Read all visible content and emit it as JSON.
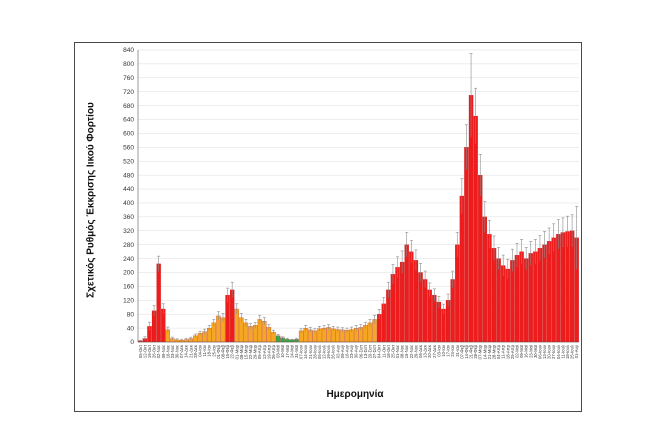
{
  "chart_data": {
    "type": "bar",
    "title": "",
    "xlabel": "Ημερομηνία",
    "ylabel": "Σχετικός Ρυθμός Έκκρισης Ιικού Φορτίου",
    "ylim": [
      0,
      840
    ],
    "yticks": [
      0,
      40,
      80,
      120,
      160,
      200,
      240,
      280,
      320,
      360,
      400,
      440,
      480,
      520,
      560,
      600,
      640,
      680,
      720,
      760,
      800,
      840
    ],
    "grid": true,
    "error_bars": true,
    "colors": {
      "high": "#ee1c1c",
      "medium": "#f5a623",
      "low": "#2eaa4a",
      "errorbar": "#8a8a8a"
    },
    "categories": [
      "05-Οκτ",
      "12-Οκτ",
      "19-Οκτ",
      "26-Οκτ",
      "02-Νοε",
      "09-Νοε",
      "16-Νοε",
      "23-Νοε",
      "30-Νοε",
      "07-Δεκ",
      "14-Δεκ",
      "21-Δεκ",
      "28-Δεκ",
      "04-Ιαν",
      "11-Ιαν",
      "18-Ιαν",
      "25-Ιαν",
      "01-Φεβ",
      "08-Φεβ",
      "15-Φεβ",
      "22-Φεβ",
      "01-Μαρ",
      "08-Μαρ",
      "15-Μαρ",
      "22-Μαρ",
      "29-Μαρ",
      "05-Απρ",
      "12-Απρ",
      "19-Απρ",
      "26-Απρ",
      "03-Μαϊ",
      "10-Μαϊ",
      "17-Μαϊ",
      "24-Μαϊ",
      "31-Μαϊ",
      "07-Ιουν",
      "14-Ιουν",
      "21-Ιουν",
      "28-Ιουν",
      "05-Ιουλ",
      "12-Ιουλ",
      "19-Ιουλ",
      "26-Ιουλ",
      "02-Αυγ",
      "09-Αυγ",
      "16-Αυγ",
      "23-Αυγ",
      "30-Αυγ",
      "06-Σεπ",
      "13-Σεπ",
      "20-Σεπ",
      "27-Σεπ",
      "04-Οκτ",
      "11-Οκτ",
      "18-Οκτ",
      "25-Οκτ",
      "01-Νοε",
      "08-Νοε",
      "15-Νοε",
      "22-Νοε",
      "29-Νοε",
      "06-Δεκ",
      "13-Δεκ",
      "20-Δεκ",
      "27-Δεκ",
      "03-Ιαν",
      "10-Ιαν",
      "17-Ιαν",
      "24-Ιαν",
      "31-Ιαν",
      "07-Φεβ",
      "14-Φεβ",
      "21-Φεβ",
      "28-Φεβ",
      "07-Μαρ",
      "14-Μαρ",
      "21-Μαρ",
      "28-Μαρ",
      "04-Απρ",
      "11-Απρ",
      "18-Απρ",
      "25-Απρ",
      "02-Μαϊ",
      "09-Μαϊ",
      "16-Μαϊ",
      "23-Μαϊ",
      "30-Μαϊ",
      "06-Ιουν",
      "13-Ιουν",
      "20-Ιουν",
      "27-Ιουν",
      "04-Ιουλ",
      "11-Ιουλ",
      "18-Ιουλ",
      "25-Ιουλ",
      "01-Αυγ"
    ],
    "values": [
      3,
      10,
      45,
      90,
      225,
      95,
      35,
      10,
      6,
      5,
      7,
      10,
      18,
      25,
      30,
      40,
      55,
      75,
      70,
      135,
      150,
      95,
      70,
      55,
      45,
      48,
      65,
      60,
      42,
      28,
      18,
      12,
      8,
      6,
      8,
      32,
      40,
      35,
      32,
      38,
      40,
      42,
      38,
      36,
      35,
      34,
      36,
      40,
      42,
      48,
      55,
      65,
      80,
      110,
      150,
      195,
      215,
      230,
      280,
      260,
      235,
      200,
      180,
      150,
      135,
      115,
      95,
      120,
      180,
      280,
      420,
      560,
      710,
      650,
      480,
      360,
      310,
      270,
      240,
      220,
      210,
      235,
      250,
      260,
      240,
      255,
      260,
      270,
      280,
      290,
      300,
      310,
      315,
      318,
      320,
      300
    ],
    "errors": [
      2,
      5,
      12,
      15,
      22,
      15,
      8,
      4,
      3,
      3,
      3,
      4,
      5,
      6,
      7,
      8,
      10,
      12,
      12,
      20,
      22,
      15,
      12,
      10,
      8,
      8,
      12,
      10,
      8,
      6,
      4,
      3,
      3,
      2,
      3,
      6,
      8,
      7,
      6,
      7,
      7,
      8,
      7,
      7,
      6,
      6,
      7,
      8,
      8,
      9,
      10,
      12,
      14,
      18,
      22,
      28,
      30,
      32,
      35,
      32,
      30,
      26,
      24,
      20,
      18,
      16,
      14,
      18,
      24,
      35,
      50,
      65,
      120,
      80,
      60,
      45,
      40,
      35,
      32,
      30,
      28,
      32,
      34,
      35,
      32,
      34,
      35,
      36,
      38,
      38,
      40,
      42,
      42,
      44,
      46,
      90
    ],
    "series_color_key": [
      "high",
      "high",
      "high",
      "high",
      "high",
      "high",
      "medium",
      "medium",
      "medium",
      "medium",
      "medium",
      "medium",
      "medium",
      "medium",
      "medium",
      "medium",
      "medium",
      "medium",
      "medium",
      "high",
      "high",
      "medium",
      "medium",
      "medium",
      "medium",
      "medium",
      "medium",
      "medium",
      "medium",
      "medium",
      "low",
      "low",
      "low",
      "low",
      "low",
      "medium",
      "medium",
      "medium",
      "medium",
      "medium",
      "medium",
      "medium",
      "medium",
      "medium",
      "medium",
      "medium",
      "medium",
      "medium",
      "medium",
      "medium",
      "medium",
      "medium",
      "high",
      "high",
      "high",
      "high",
      "high",
      "high",
      "high",
      "high",
      "high",
      "high",
      "high",
      "high",
      "high",
      "high",
      "high",
      "high",
      "high",
      "high",
      "high",
      "high",
      "high",
      "high",
      "high",
      "high",
      "high",
      "high",
      "high",
      "high",
      "high",
      "high",
      "high",
      "high",
      "high",
      "high",
      "high",
      "high",
      "high",
      "high",
      "high",
      "high",
      "high",
      "high",
      "high",
      "high"
    ]
  }
}
